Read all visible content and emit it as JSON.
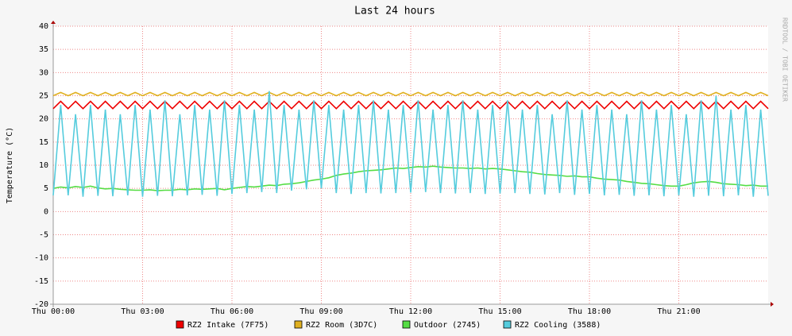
{
  "chart_data": {
    "type": "line",
    "title": "Last 24 hours",
    "y_label": "Temperature (°C)",
    "side_label": "RRDTOOL / TOBI OETIKER",
    "x": [
      0,
      0.25,
      0.5,
      0.75,
      1,
      1.25,
      1.5,
      1.75,
      2,
      2.25,
      2.5,
      2.75,
      3,
      3.25,
      3.5,
      3.75,
      4,
      4.25,
      4.5,
      4.75,
      5,
      5.25,
      5.5,
      5.75,
      6,
      6.25,
      6.5,
      6.75,
      7,
      7.25,
      7.5,
      7.75,
      8,
      8.25,
      8.5,
      8.75,
      9,
      9.25,
      9.5,
      9.75,
      10,
      10.25,
      10.5,
      10.75,
      11,
      11.25,
      11.5,
      11.75,
      12,
      12.25,
      12.5,
      12.75,
      13,
      13.25,
      13.5,
      13.75,
      14,
      14.25,
      14.5,
      14.75,
      15,
      15.25,
      15.5,
      15.75,
      16,
      16.25,
      16.5,
      16.75,
      17,
      17.25,
      17.5,
      17.75,
      18,
      18.25,
      18.5,
      18.75,
      19,
      19.25,
      19.5,
      19.75,
      20,
      20.25,
      20.5,
      20.75,
      21,
      21.25,
      21.5,
      21.75,
      22,
      22.25,
      22.5,
      22.75,
      23,
      23.25,
      23.5,
      23.75,
      24
    ],
    "xlim": [
      0,
      24
    ],
    "xticks": [
      {
        "value": 0,
        "label": "Thu 00:00"
      },
      {
        "value": 3,
        "label": "Thu 03:00"
      },
      {
        "value": 6,
        "label": "Thu 06:00"
      },
      {
        "value": 9,
        "label": "Thu 09:00"
      },
      {
        "value": 12,
        "label": "Thu 12:00"
      },
      {
        "value": 15,
        "label": "Thu 15:00"
      },
      {
        "value": 18,
        "label": "Thu 18:00"
      },
      {
        "value": 21,
        "label": "Thu 21:00"
      }
    ],
    "ylim": [
      -20,
      40
    ],
    "yticks": [
      -20,
      -15,
      -10,
      -5,
      0,
      5,
      10,
      15,
      20,
      25,
      30,
      35,
      40
    ],
    "grid": true,
    "series": [
      {
        "name": "RZ2 Intake (7F75)",
        "color": "#ee0000",
        "values": [
          22.2,
          23.8,
          22.2,
          23.8,
          22.2,
          23.8,
          22.2,
          23.8,
          22.2,
          23.8,
          22.2,
          23.8,
          22.2,
          23.8,
          22.2,
          23.8,
          22.2,
          23.8,
          22.2,
          23.8,
          22.2,
          23.8,
          22.2,
          23.8,
          22.2,
          23.8,
          22.2,
          23.8,
          22.2,
          23.8,
          22.2,
          23.8,
          22.2,
          23.8,
          22.2,
          23.8,
          22.2,
          23.8,
          22.2,
          23.8,
          22.2,
          23.8,
          22.2,
          23.8,
          22.2,
          23.8,
          22.2,
          23.8,
          22.2,
          23.8,
          22.2,
          23.8,
          22.2,
          23.8,
          22.2,
          23.8,
          22.2,
          23.8,
          22.2,
          23.8,
          22.2,
          23.8,
          22.2,
          23.8,
          22.2,
          23.8,
          22.2,
          23.8,
          22.2,
          23.8,
          22.2,
          23.8,
          22.2,
          23.8,
          22.2,
          23.8,
          22.2,
          23.8,
          22.2,
          23.8,
          22.2,
          23.8,
          22.2,
          23.8,
          22.2,
          23.8,
          22.2,
          23.8,
          22.2,
          23.8,
          22.2,
          23.8,
          22.2,
          23.8,
          22.2,
          23.8,
          22.2
        ]
      },
      {
        "name": "RZ2 Room (3D7C)",
        "color": "#e0b020",
        "values": [
          25,
          25.7,
          25,
          25.7,
          25,
          25.7,
          25,
          25.7,
          25,
          25.7,
          25,
          25.7,
          25,
          25.7,
          25,
          25.7,
          25,
          25.7,
          25,
          25.7,
          25,
          25.7,
          25,
          25.7,
          25,
          25.7,
          25,
          25.7,
          25,
          25.7,
          25,
          25.7,
          25,
          25.7,
          25,
          25.7,
          25,
          25.7,
          25,
          25.7,
          25,
          25.7,
          25,
          25.7,
          25,
          25.7,
          25,
          25.7,
          25,
          25.7,
          25,
          25.7,
          25,
          25.7,
          25,
          25.7,
          25,
          25.7,
          25,
          25.7,
          25,
          25.7,
          25,
          25.7,
          25,
          25.7,
          25,
          25.7,
          25,
          25.7,
          25,
          25.7,
          25,
          25.7,
          25,
          25.7,
          25,
          25.7,
          25,
          25.7,
          25,
          25.7,
          25,
          25.7,
          25,
          25.7,
          25,
          25.7,
          25,
          25.7,
          25,
          25.7,
          25,
          25.7,
          25,
          25.7,
          25
        ]
      },
      {
        "name": "Outdoor (2745)",
        "color": "#55dd44",
        "values": [
          5,
          5.3,
          5.1,
          5.4,
          5.2,
          5.5,
          5.1,
          4.9,
          5,
          4.8,
          4.7,
          4.6,
          4.6,
          4.7,
          4.5,
          4.6,
          4.6,
          4.8,
          4.7,
          4.9,
          4.8,
          4.9,
          5,
          4.7,
          5,
          5.2,
          5.4,
          5.3,
          5.5,
          5.7,
          5.6,
          5.9,
          6,
          6.2,
          6.5,
          6.8,
          7,
          7.3,
          7.8,
          8.1,
          8.3,
          8.6,
          8.8,
          8.9,
          9,
          9.2,
          9.4,
          9.3,
          9.5,
          9.7,
          9.6,
          9.8,
          9.6,
          9.5,
          9.4,
          9.4,
          9.3,
          9.4,
          9.2,
          9.3,
          9.2,
          9,
          8.8,
          8.6,
          8.5,
          8.2,
          8,
          7.9,
          7.8,
          7.6,
          7.7,
          7.5,
          7.5,
          7.2,
          7,
          6.9,
          6.8,
          6.5,
          6.3,
          6.1,
          6,
          5.8,
          5.6,
          5.5,
          5.5,
          5.8,
          6.2,
          6.4,
          6.5,
          6.3,
          6,
          5.9,
          5.8,
          5.6,
          5.7,
          5.5,
          5.5
        ]
      },
      {
        "name": "RZ2 Cooling (3588)",
        "color": "#55ccdd",
        "values": [
          3.5,
          23,
          3.5,
          21,
          3.2,
          23,
          3.4,
          22,
          3.3,
          21,
          3.5,
          23,
          3.2,
          22,
          3.4,
          24,
          3.3,
          21,
          3.5,
          23,
          3.6,
          22,
          3.4,
          24,
          3.8,
          23,
          4,
          22,
          4.2,
          26,
          4,
          23,
          4.5,
          22,
          4.8,
          24,
          5,
          23,
          4,
          22,
          3.8,
          23,
          4,
          24,
          3.9,
          22,
          4,
          23,
          4.1,
          24,
          4.2,
          22,
          4,
          23,
          3.9,
          24,
          4,
          22,
          3.8,
          23,
          3.9,
          24,
          4,
          22,
          3.8,
          23,
          3.7,
          21,
          4,
          24,
          3.6,
          22,
          3.8,
          23,
          3.5,
          22,
          3.6,
          21,
          3.4,
          24,
          3.5,
          22,
          3.3,
          23,
          3.5,
          21,
          3.2,
          24,
          3.4,
          25,
          3.3,
          22,
          3.5,
          23,
          3.2,
          22,
          3.4
        ]
      }
    ]
  }
}
